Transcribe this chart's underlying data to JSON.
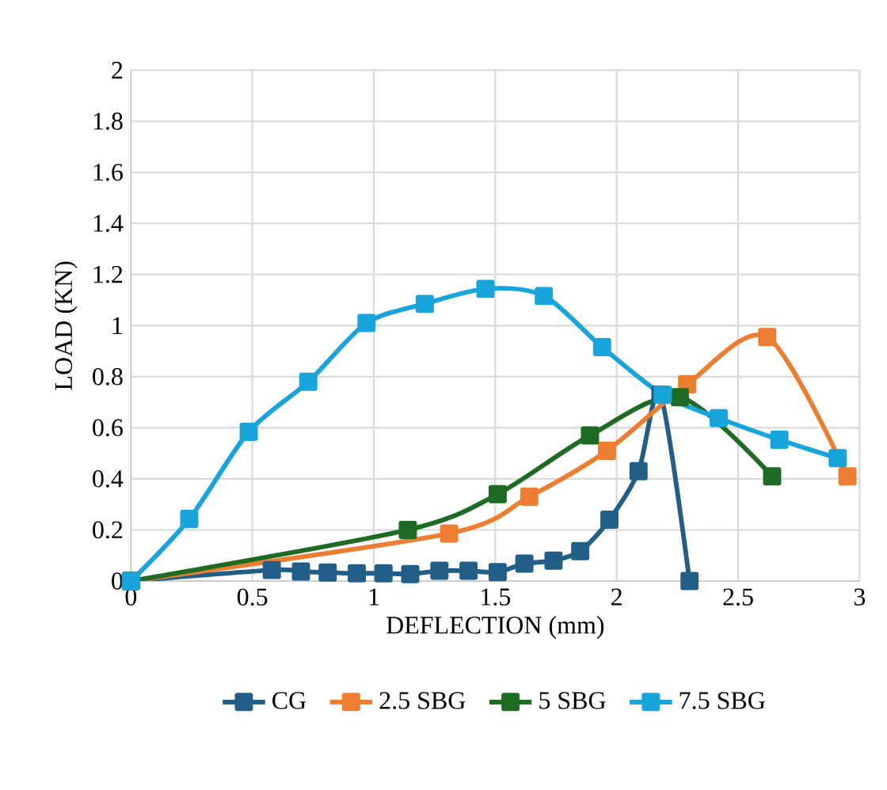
{
  "chart_data": {
    "type": "line",
    "xlabel": "DEFLECTION (mm)",
    "ylabel": "LOAD (KN)",
    "xlim": [
      0,
      3
    ],
    "ylim": [
      0,
      2
    ],
    "xticks": [
      0,
      0.5,
      1,
      1.5,
      2,
      2.5,
      3
    ],
    "yticks": [
      0,
      0.2,
      0.4,
      0.6,
      0.8,
      1,
      1.2,
      1.4,
      1.6,
      1.8,
      2
    ],
    "grid": true,
    "legend": "bottom",
    "marker": "square",
    "line_style": "solid",
    "series": [
      {
        "name": "CG",
        "color": "#215f89",
        "x": [
          0,
          0.58,
          0.7,
          0.81,
          0.93,
          1.04,
          1.15,
          1.27,
          1.39,
          1.51,
          1.62,
          1.74,
          1.85,
          1.97,
          2.09,
          2.18,
          2.3
        ],
        "values": [
          0,
          0.043,
          0.037,
          0.033,
          0.03,
          0.03,
          0.027,
          0.04,
          0.04,
          0.035,
          0.068,
          0.08,
          0.117,
          0.24,
          0.43,
          0.73,
          0
        ]
      },
      {
        "name": "2.5 SBG",
        "color": "#ed7d31",
        "x": [
          0,
          1.31,
          1.64,
          1.96,
          2.29,
          2.62,
          2.95
        ],
        "values": [
          0,
          0.186,
          0.33,
          0.51,
          0.77,
          0.955,
          0.41
        ]
      },
      {
        "name": "5 SBG",
        "color": "#1e6b24",
        "x": [
          0,
          1.14,
          1.51,
          1.89,
          2.26,
          2.64
        ],
        "values": [
          0,
          0.2,
          0.34,
          0.57,
          0.72,
          0.41
        ]
      },
      {
        "name": "7.5 SBG",
        "color": "#17a5db",
        "x": [
          0,
          0.24,
          0.485,
          0.73,
          0.97,
          1.21,
          1.46,
          1.7,
          1.94,
          2.19,
          2.42,
          2.67,
          2.91
        ],
        "values": [
          0,
          0.243,
          0.584,
          0.78,
          1.01,
          1.085,
          1.144,
          1.116,
          0.916,
          0.729,
          0.638,
          0.553,
          0.481
        ]
      }
    ]
  }
}
